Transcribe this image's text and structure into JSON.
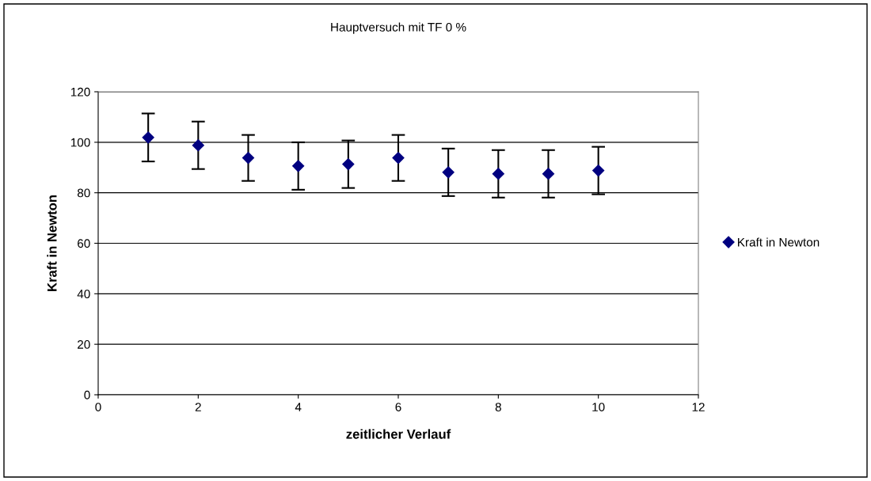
{
  "chart_data": {
    "type": "scatter",
    "title": "Hauptversuch mit TF 0 %",
    "xlabel": "zeitlicher Verlauf",
    "ylabel": "Kraft in Newton",
    "x": [
      1,
      2,
      3,
      4,
      5,
      6,
      7,
      8,
      9,
      10
    ],
    "series": [
      {
        "name": "Kraft in Newton",
        "color": "#000080",
        "values": [
          101.9,
          98.8,
          93.8,
          90.6,
          91.3,
          93.8,
          88.1,
          87.5,
          87.5,
          88.8
        ],
        "errors": [
          9.5,
          9.4,
          9.1,
          9.4,
          9.4,
          9.1,
          9.4,
          9.4,
          9.4,
          9.4
        ]
      }
    ],
    "xlim": [
      0,
      12
    ],
    "xticks": [
      0,
      2,
      4,
      6,
      8,
      10,
      12
    ],
    "ylim": [
      0,
      120
    ],
    "yticks": [
      0,
      20,
      40,
      60,
      80,
      100,
      120
    ],
    "grid": "y",
    "legend": "right",
    "marker": "diamond"
  }
}
